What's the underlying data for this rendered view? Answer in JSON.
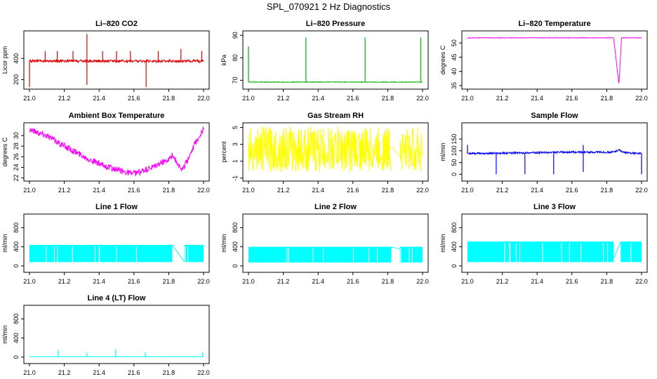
{
  "figure_title": "SPL_070921  2 Hz Diagnostics",
  "chart_data": [
    {
      "id": "co2",
      "type": "line",
      "title": "Li–820 CO2",
      "ylabel": "Licor ppm",
      "color": "#e00000",
      "xlim": [
        21.0,
        22.0
      ],
      "ylim": [
        130,
        640
      ],
      "xticks": [
        "21.0",
        "21.2",
        "21.4",
        "21.6",
        "21.8",
        "22.0"
      ],
      "yticks": [
        200,
        400
      ],
      "gap": null,
      "segments": [
        {
          "x": [
            21.0,
            22.0
          ],
          "y": [
            375,
            375
          ]
        }
      ],
      "noise": 12,
      "seed": 11,
      "spikes": [
        {
          "x": 21.0,
          "y": [
            130,
            375
          ]
        },
        {
          "x": 21.09,
          "y": [
            375,
            470
          ]
        },
        {
          "x": 21.16,
          "y": [
            375,
            470
          ]
        },
        {
          "x": 21.25,
          "y": [
            375,
            470
          ]
        },
        {
          "x": 21.33,
          "y": [
            150,
            630
          ]
        },
        {
          "x": 21.42,
          "y": [
            375,
            470
          ]
        },
        {
          "x": 21.5,
          "y": [
            375,
            470
          ]
        },
        {
          "x": 21.58,
          "y": [
            375,
            470
          ]
        },
        {
          "x": 21.67,
          "y": [
            130,
            375
          ]
        },
        {
          "x": 21.74,
          "y": [
            375,
            470
          ]
        },
        {
          "x": 21.87,
          "y": [
            375,
            490
          ]
        },
        {
          "x": 21.99,
          "y": [
            375,
            470
          ]
        }
      ]
    },
    {
      "id": "pressure",
      "type": "line",
      "title": "Li–820 Pressure",
      "ylabel": "kPa",
      "color": "#00b400",
      "xlim": [
        21.0,
        22.0
      ],
      "ylim": [
        67,
        91
      ],
      "xticks": [
        "21.0",
        "21.2",
        "21.4",
        "21.6",
        "21.8",
        "22.0"
      ],
      "yticks": [
        70,
        80,
        90
      ],
      "gap": null,
      "segments": [
        {
          "x": [
            21.0,
            22.0
          ],
          "y": [
            69.2,
            69.2
          ]
        }
      ],
      "noise": 0.15,
      "seed": 12,
      "spikes": [
        {
          "x": 21.0,
          "y": [
            69.2,
            85
          ]
        },
        {
          "x": 21.33,
          "y": [
            69.2,
            89
          ]
        },
        {
          "x": 21.67,
          "y": [
            69.2,
            89
          ]
        },
        {
          "x": 21.99,
          "y": [
            69.2,
            89
          ]
        }
      ]
    },
    {
      "id": "licor_temp",
      "type": "line",
      "title": "Li–820 Temperature",
      "ylabel": "degrees C",
      "color": "#ff00ff",
      "xlim": [
        21.0,
        22.0
      ],
      "ylim": [
        34.5,
        53.5
      ],
      "xticks": [
        "21.0",
        "21.2",
        "21.4",
        "21.6",
        "21.8",
        "22.0"
      ],
      "yticks": [
        35,
        40,
        45,
        50
      ],
      "gap": null,
      "segments": [
        {
          "x": [
            21.0,
            21.84,
            21.87,
            21.885,
            22.0
          ],
          "y": [
            51.8,
            51.8,
            35.2,
            51.8,
            51.8
          ]
        }
      ],
      "noise": 0.1,
      "seed": 13,
      "spikes": []
    },
    {
      "id": "ambient_temp",
      "type": "line",
      "title": "Ambient Box Temperature",
      "ylabel": "degrees C",
      "color": "#ff00ff",
      "xlim": [
        21.0,
        22.0
      ],
      "ylim": [
        21.8,
        32.0
      ],
      "xticks": [
        "21.0",
        "21.2",
        "21.4",
        "21.6",
        "21.8",
        "22.0"
      ],
      "yticks": [
        22,
        24,
        26,
        28,
        30
      ],
      "gap": null,
      "segments": [
        {
          "x": [
            21.0,
            21.1,
            21.2,
            21.3,
            21.4,
            21.5,
            21.6,
            21.7,
            21.8,
            21.82,
            21.88,
            21.95,
            22.0
          ],
          "y": [
            31.2,
            30.0,
            28.0,
            26.3,
            24.6,
            23.5,
            22.8,
            23.8,
            25.6,
            26.2,
            23.5,
            28.5,
            31.2
          ]
        }
      ],
      "noise": 0.6,
      "seed": 14,
      "spikes": []
    },
    {
      "id": "rh",
      "type": "line",
      "title": "Gas Stream RH",
      "ylabel": "percent",
      "color": "#ffff00",
      "xlim": [
        21.0,
        22.0
      ],
      "ylim": [
        -1.1,
        5.3
      ],
      "xticks": [
        "21.0",
        "21.2",
        "21.4",
        "21.6",
        "21.8",
        "22.0"
      ],
      "yticks": [
        -1,
        1,
        3,
        5
      ],
      "gap": [
        21.82,
        21.87
      ],
      "segments": [
        {
          "x": [
            21.0,
            22.0
          ],
          "y": [
            2.4,
            2.4
          ]
        }
      ],
      "noise": 2.7,
      "seed": 15,
      "spikes": []
    },
    {
      "id": "sample_flow",
      "type": "line",
      "title": "Sample Flow",
      "ylabel": "ml/min",
      "color": "#0000ff",
      "xlim": [
        21.0,
        22.0
      ],
      "ylim": [
        -20,
        210
      ],
      "xticks": [
        "21.0",
        "21.2",
        "21.4",
        "21.6",
        "21.8",
        "22.0"
      ],
      "yticks": [
        0,
        50,
        100,
        150
      ],
      "gap": null,
      "segments": [
        {
          "x": [
            21.0,
            21.2,
            21.4,
            21.6,
            21.84,
            21.87,
            21.9,
            22.0
          ],
          "y": [
            88,
            90,
            92,
            94,
            94,
            105,
            92,
            88
          ]
        }
      ],
      "noise": 4,
      "seed": 16,
      "spikes": [
        {
          "x": 21.0,
          "y": [
            88,
            125
          ]
        },
        {
          "x": 21.165,
          "y": [
            0,
            90
          ]
        },
        {
          "x": 21.33,
          "y": [
            0,
            91
          ]
        },
        {
          "x": 21.495,
          "y": [
            0,
            92
          ]
        },
        {
          "x": 21.665,
          "y": [
            10,
            125
          ]
        },
        {
          "x": 22.0,
          "y": [
            0,
            88
          ]
        }
      ]
    },
    {
      "id": "line1",
      "type": "line",
      "title": "Line 1 Flow",
      "ylabel": "ml/min",
      "color": "#00ffff",
      "xlim": [
        21.0,
        22.0
      ],
      "ylim": [
        -90,
        1040
      ],
      "xticks": [
        "21.0",
        "21.2",
        "21.4",
        "21.6",
        "21.8",
        "22.0"
      ],
      "yticks": [
        0,
        400,
        800
      ],
      "band": [
        80,
        440
      ],
      "gap": [
        21.82,
        21.89
      ],
      "segments": [
        {
          "x": [
            21.82,
            21.89
          ],
          "y": [
            440,
            90
          ]
        }
      ],
      "noise": 0,
      "seed": 17,
      "spikes": []
    },
    {
      "id": "line2",
      "type": "line",
      "title": "Line 2 Flow",
      "ylabel": "ml/min",
      "color": "#00ffff",
      "xlim": [
        21.0,
        22.0
      ],
      "ylim": [
        -90,
        1040
      ],
      "xticks": [
        "21.0",
        "21.2",
        "21.4",
        "21.6",
        "21.8",
        "22.0"
      ],
      "yticks": [
        0,
        400,
        800
      ],
      "band": [
        70,
        400
      ],
      "gap": [
        21.82,
        21.87
      ],
      "segments": [
        {
          "x": [
            21.82,
            21.87
          ],
          "y": [
            400,
            350
          ]
        }
      ],
      "noise": 0,
      "seed": 18,
      "spikes": []
    },
    {
      "id": "line3",
      "type": "line",
      "title": "Line 3 Flow",
      "ylabel": "ml/min",
      "color": "#00ffff",
      "xlim": [
        21.0,
        22.0
      ],
      "ylim": [
        -90,
        1040
      ],
      "xticks": [
        "21.0",
        "21.2",
        "21.4",
        "21.6",
        "21.8",
        "22.0"
      ],
      "yticks": [
        0,
        400,
        800
      ],
      "band": [
        80,
        510
      ],
      "gap": [
        21.84,
        21.88
      ],
      "segments": [
        {
          "x": [
            21.84,
            21.88
          ],
          "y": [
            170,
            500
          ]
        }
      ],
      "noise": 0,
      "seed": 19,
      "spikes": []
    },
    {
      "id": "line4",
      "type": "line",
      "title": "Line 4 (LT) Flow",
      "ylabel": "ml/min",
      "color": "#00ffff",
      "xlim": [
        21.0,
        22.0
      ],
      "ylim": [
        -90,
        1040
      ],
      "xticks": [
        "21.0",
        "21.2",
        "21.4",
        "21.6",
        "21.8",
        "22.0"
      ],
      "yticks": [
        0,
        400,
        800
      ],
      "gap": null,
      "segments": [
        {
          "x": [
            21.0,
            22.0
          ],
          "y": [
            10,
            10
          ]
        }
      ],
      "noise": 3,
      "seed": 20,
      "spikes": [
        {
          "x": 21.165,
          "y": [
            10,
            150
          ]
        },
        {
          "x": 21.33,
          "y": [
            10,
            95
          ]
        },
        {
          "x": 21.495,
          "y": [
            10,
            165
          ]
        },
        {
          "x": 21.665,
          "y": [
            10,
            100
          ]
        },
        {
          "x": 21.995,
          "y": [
            10,
            110
          ]
        }
      ]
    }
  ]
}
